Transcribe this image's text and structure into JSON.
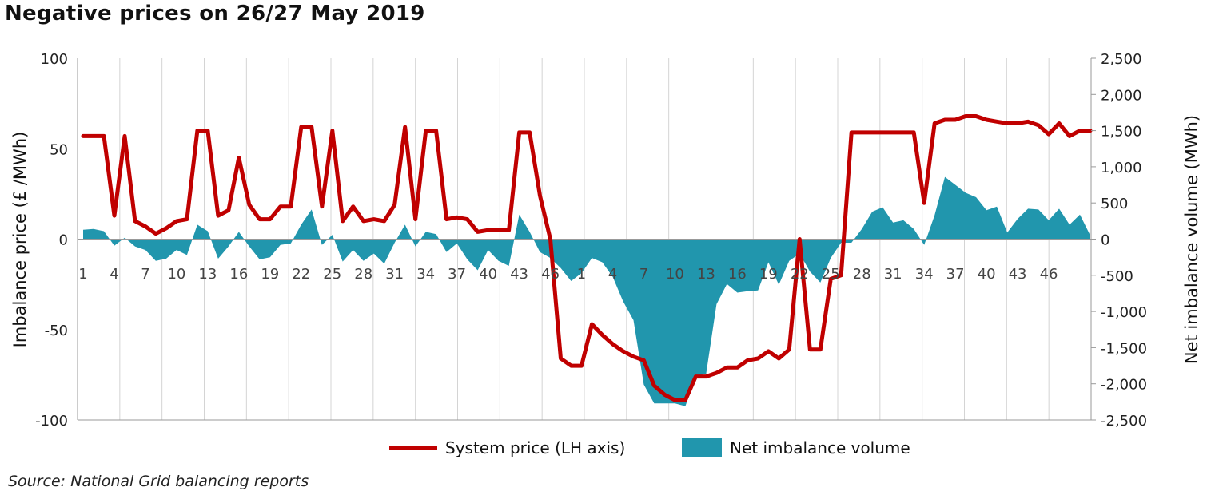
{
  "chart_data": {
    "type": "line",
    "title": "Negative prices on 26/27 May 2019",
    "source": "Source: National Grid balancing reports",
    "ylabel_left": "Imbalance price (£ /MWh)",
    "ylabel_right": "Net imbalance volume (MWh)",
    "ylim_left": [
      -100,
      100
    ],
    "ylim_right": [
      -2500,
      2500
    ],
    "yticks_left": [
      "100",
      "50",
      "0",
      "-50",
      "-100"
    ],
    "yticks_right": [
      "2,500",
      "2,000",
      "1,500",
      "1,000",
      "500",
      "0",
      "-500",
      "-1,000",
      "-1,500",
      "-2,000",
      "-2,500"
    ],
    "x_tick_labels": [
      "1",
      "4",
      "7",
      "10",
      "13",
      "16",
      "19",
      "22",
      "25",
      "28",
      "31",
      "34",
      "37",
      "40",
      "43",
      "46",
      "1",
      "4",
      "7",
      "10",
      "13",
      "16",
      "19",
      "22",
      "25",
      "28",
      "31",
      "34",
      "37",
      "40",
      "43",
      "46"
    ],
    "grid": "vertical",
    "legend_position": "bottom",
    "series": [
      {
        "name": "System price (LH axis)",
        "axis": "left",
        "color": "#c00000",
        "values": [
          57,
          57,
          57,
          13,
          57,
          10,
          7,
          3,
          6,
          10,
          11,
          60,
          60,
          13,
          16,
          45,
          19,
          11,
          11,
          18,
          18,
          62,
          62,
          18,
          60,
          10,
          18,
          10,
          11,
          10,
          19,
          62,
          11,
          60,
          60,
          11,
          12,
          11,
          4,
          5,
          5,
          5,
          59,
          59,
          24,
          0,
          -66,
          -70,
          -70,
          -47,
          -53,
          -58,
          -62,
          -65,
          -67,
          -81,
          -86,
          -89,
          -89,
          -76,
          -76,
          -74,
          -71,
          -71,
          -67,
          -66,
          -62,
          -66,
          -61,
          0,
          -61,
          -61,
          -22,
          -20,
          59,
          59,
          59,
          59,
          59,
          59,
          59,
          20,
          64,
          66,
          66,
          68,
          68,
          66,
          65,
          64,
          64,
          65,
          63,
          58,
          64,
          57,
          60,
          60
        ]
      },
      {
        "name": "Net imbalance volume",
        "axis": "right",
        "color": "#2196ad",
        "type": "area",
        "values": [
          130,
          140,
          110,
          -90,
          20,
          -100,
          -150,
          -300,
          -270,
          -150,
          -220,
          200,
          110,
          -270,
          -100,
          100,
          -100,
          -280,
          -250,
          -80,
          -60,
          200,
          410,
          -80,
          60,
          -310,
          -150,
          -300,
          -200,
          -340,
          -50,
          200,
          -100,
          100,
          70,
          -180,
          -60,
          -280,
          -430,
          -150,
          -300,
          -370,
          340,
          100,
          -180,
          -260,
          -400,
          -580,
          -470,
          -260,
          -320,
          -520,
          -860,
          -1120,
          -2010,
          -2270,
          -2270,
          -2270,
          -2310,
          -1900,
          -1860,
          -900,
          -620,
          -740,
          -720,
          -710,
          -320,
          -630,
          -300,
          -200,
          -450,
          -600,
          -260,
          -50,
          -50,
          140,
          380,
          440,
          230,
          260,
          140,
          -80,
          330,
          860,
          750,
          640,
          580,
          400,
          450,
          90,
          280,
          420,
          410,
          260,
          420,
          200,
          340,
          50
        ]
      }
    ]
  }
}
